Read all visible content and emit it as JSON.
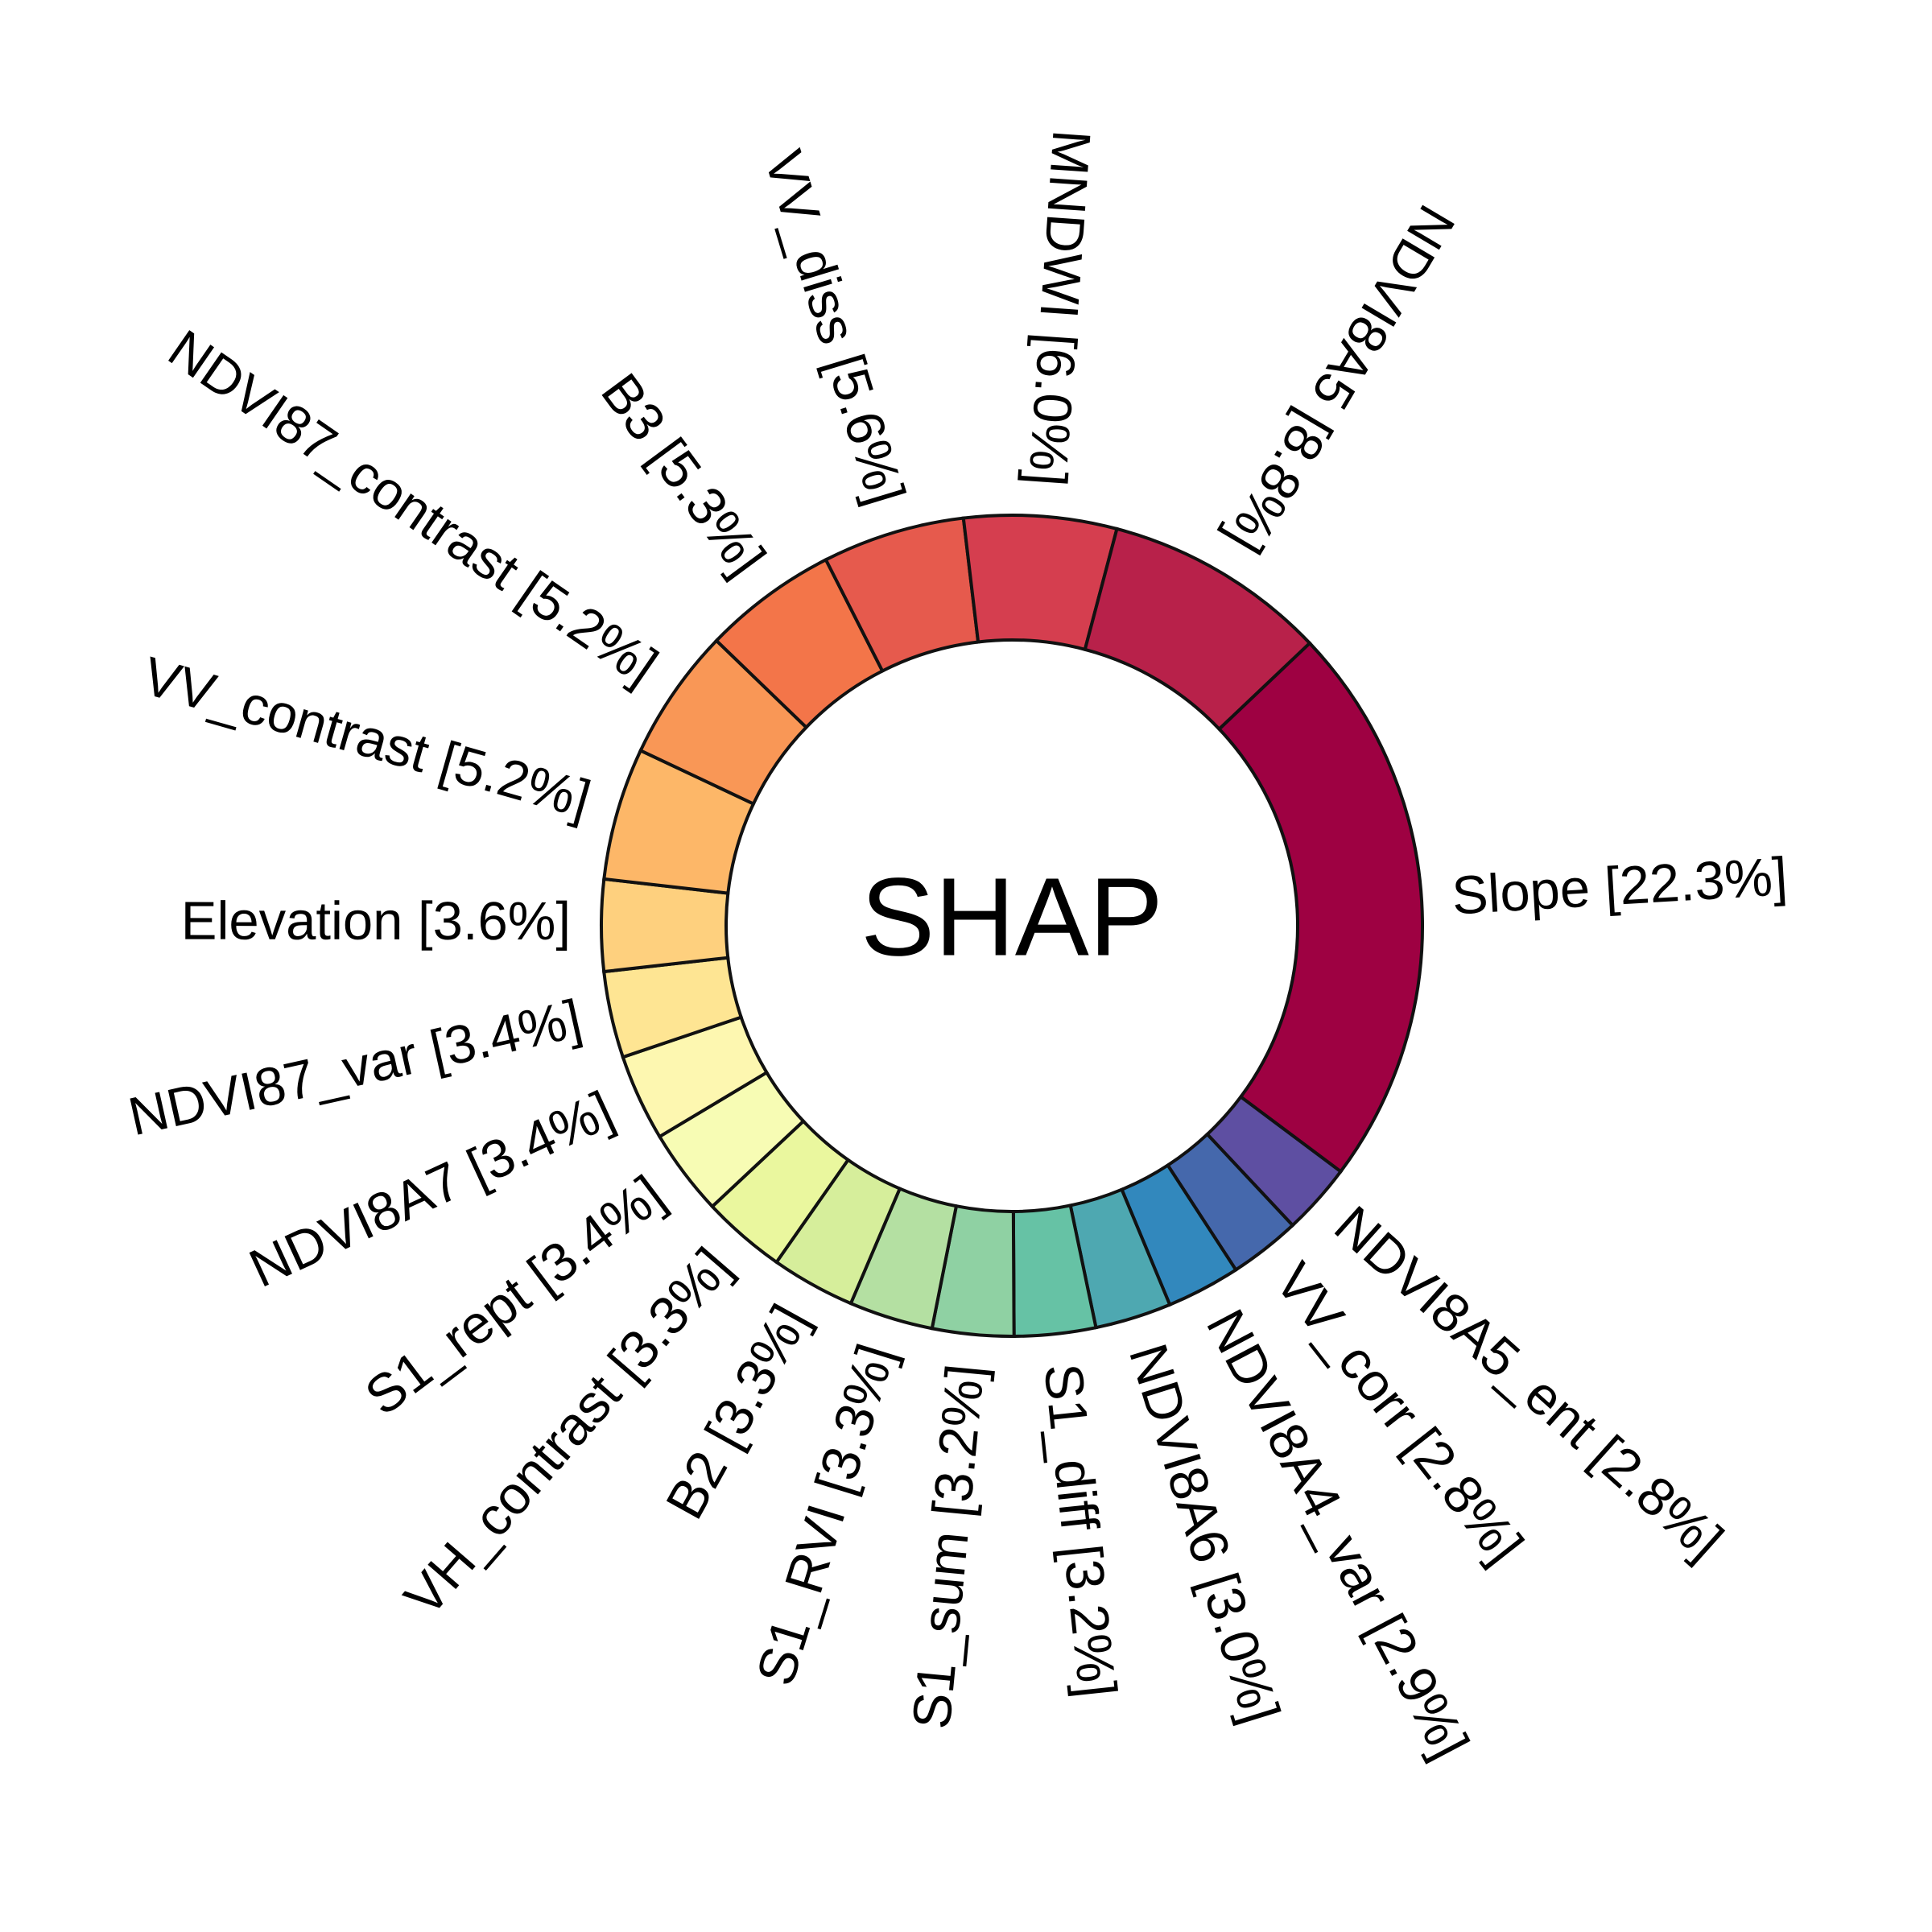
{
  "chart_data": {
    "type": "pie",
    "title": "SHAP",
    "donut": true,
    "order": "clockwise from the top, largest first after NDVI8A5 / Slope",
    "slices": [
      {
        "label": "Slope [22.3%]",
        "value": 22.3,
        "color": "#9e0142"
      },
      {
        "label": "NDVI8A5_ent [2.8%]",
        "value": 2.8,
        "color": "#5e4fa2"
      },
      {
        "label": "VV_corr [2.8%]",
        "value": 2.8,
        "color": "#4568ac"
      },
      {
        "label": "NDVI8A4_var [2.9%]",
        "value": 2.9,
        "color": "#3288bd"
      },
      {
        "label": "NDVI8A6 [3.0%]",
        "value": 3.0,
        "color": "#4ea8b1"
      },
      {
        "label": "S1_diff [3.2%]",
        "value": 3.2,
        "color": "#66c2a5"
      },
      {
        "label": "S1_sum [3.2%]",
        "value": 3.2,
        "color": "#8fd1a3"
      },
      {
        "label": "S1_RVI [3.3%]",
        "value": 3.3,
        "color": "#b4e0a2"
      },
      {
        "label": "B2 [3.3%]",
        "value": 3.3,
        "color": "#d6ee9b"
      },
      {
        "label": "VH_contrast [3.3%]",
        "value": 3.3,
        "color": "#eaf79e"
      },
      {
        "label": "S1_rept [3.4%]",
        "value": 3.4,
        "color": "#f7fcb4"
      },
      {
        "label": "NDVI8A7 [3.4%]",
        "value": 3.4,
        "color": "#fdf7b0"
      },
      {
        "label": "NDVI87_var [3.4%]",
        "value": 3.4,
        "color": "#fee593"
      },
      {
        "label": "Elevation [3.6%]",
        "value": 3.6,
        "color": "#fed07e"
      },
      {
        "label": "VV_contrast [5.2%]",
        "value": 5.2,
        "color": "#fdb768"
      },
      {
        "label": "NDVI87_contrast [5.2%]",
        "value": 5.2,
        "color": "#f99756"
      },
      {
        "label": "B3 [5.3%]",
        "value": 5.3,
        "color": "#f37549"
      },
      {
        "label": "VV_diss [5.6%]",
        "value": 5.6,
        "color": "#e65a4d"
      },
      {
        "label": "MNDWI [6.0%]",
        "value": 6.0,
        "color": "#d53e4f"
      },
      {
        "label": "NDVI8A5 [8.8%]",
        "value": 8.8,
        "color": "#b8214a"
      }
    ]
  }
}
